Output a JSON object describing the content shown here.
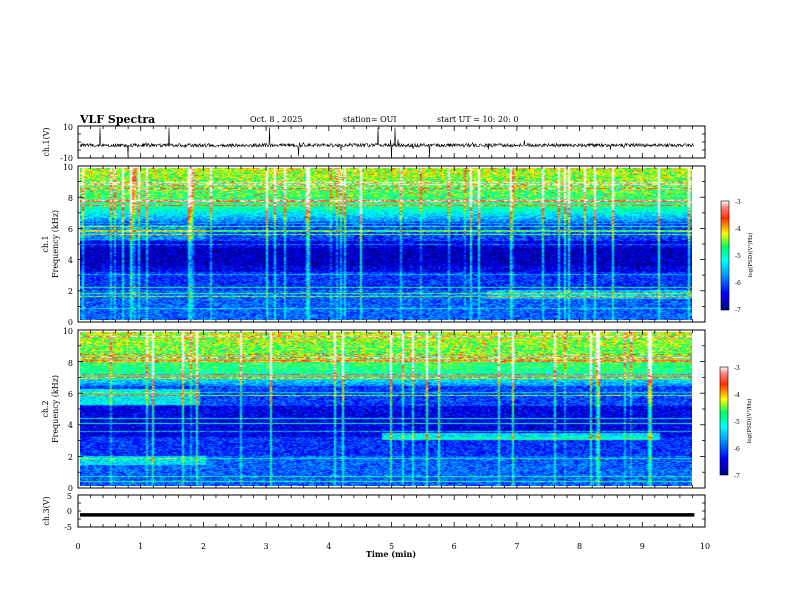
{
  "header": {
    "title": "VLF Spectra",
    "date": "Oct. 8  , 2025",
    "station": "station= OUI",
    "start_ut": "start  UT  =   10: 20: 0"
  },
  "chart_data": [
    {
      "id": "ch1_waveform",
      "type": "line",
      "ylabel": "ch.1(V)",
      "ylim": [
        -10,
        10
      ],
      "yticks": [
        "10",
        "-10"
      ],
      "xlim": [
        0,
        10
      ],
      "baseline": -2
    },
    {
      "id": "ch1_spectrogram",
      "type": "heatmap",
      "ylabel_line1": "ch.1",
      "ylabel_line2": "Frequency (kHz)",
      "ylim": [
        0,
        10
      ],
      "yticks": [
        "0",
        "2",
        "4",
        "6",
        "8",
        "10"
      ],
      "xlim": [
        0,
        9.83
      ],
      "colorbar": {
        "label": "log(PSD)(V²/Hz)",
        "range": [
          -7,
          -3
        ],
        "ticks": [
          "-3",
          "-4",
          "-5",
          "-6",
          "-7"
        ]
      }
    },
    {
      "id": "ch2_spectrogram",
      "type": "heatmap",
      "ylabel_line1": "ch.2",
      "ylabel_line2": "Frequency (kHz)",
      "ylim": [
        0,
        10
      ],
      "yticks": [
        "0",
        "2",
        "4",
        "6",
        "8",
        "10"
      ],
      "xlim": [
        0,
        9.83
      ],
      "colorbar": {
        "label": "log(PSD)(V²/Hz)",
        "range": [
          -7,
          -3
        ],
        "ticks": [
          "-3",
          "-4",
          "-5",
          "-6",
          "-7"
        ]
      }
    },
    {
      "id": "ch3_waveform",
      "type": "line",
      "ylabel": "ch.3(V)",
      "ylim": [
        -5,
        5
      ],
      "yticks": [
        "5",
        "0",
        "-5"
      ],
      "xlim": [
        0,
        10
      ],
      "baseline": -1.2
    }
  ],
  "x_axis": {
    "label": "Time  (min)",
    "range": [
      0,
      10
    ],
    "ticks": [
      "0",
      "1",
      "2",
      "3",
      "4",
      "5",
      "6",
      "7",
      "8",
      "9",
      "10"
    ]
  }
}
